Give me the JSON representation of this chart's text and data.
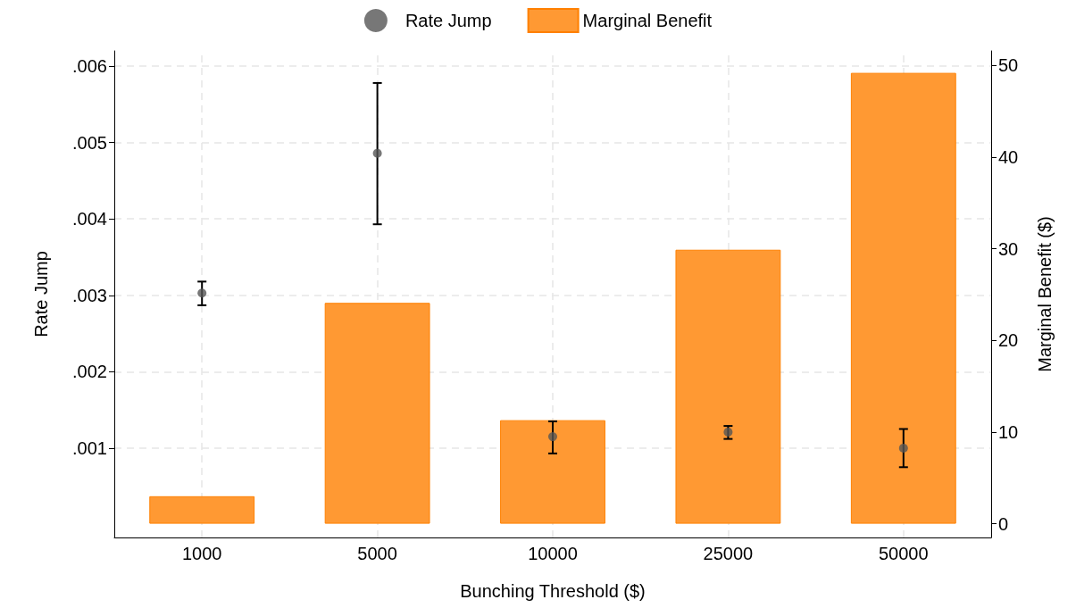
{
  "chart_data": {
    "type": "bar",
    "xlabel": "Bunching Threshold ($)",
    "ylabel": "Rate Jump",
    "y2label": "Marginal Benefit ($)",
    "categories": [
      "1000",
      "5000",
      "10000",
      "25000",
      "50000"
    ],
    "series": [
      {
        "name": "Rate Jump",
        "type": "scatter",
        "color": "#555555",
        "values": [
          0.00303,
          0.00486,
          0.00115,
          0.00121,
          0.001
        ],
        "errors": [
          [
            0.00287,
            0.00318
          ],
          [
            0.00393,
            0.00578
          ],
          [
            0.00093,
            0.00135
          ],
          [
            0.00112,
            0.00129
          ],
          [
            0.00075,
            0.00125
          ]
        ]
      },
      {
        "name": "Marginal Benefit",
        "axis": "y2",
        "color": "#ff9933",
        "values": [
          3.0,
          24.1,
          11.3,
          29.9,
          49.2
        ]
      }
    ],
    "ylim": [
      -0.00017,
      0.0062
    ],
    "yticks": [
      {
        "value": 0.001,
        "label": ".001"
      },
      {
        "value": 0.002,
        "label": ".002"
      },
      {
        "value": 0.003,
        "label": ".003"
      },
      {
        "value": 0.004,
        "label": ".004"
      },
      {
        "value": 0.005,
        "label": ".005"
      },
      {
        "value": 0.006,
        "label": ".006"
      }
    ],
    "y2lim": [
      -1.5,
      51.6
    ],
    "y2ticks": [
      0,
      10,
      20,
      30,
      40,
      50
    ],
    "grid": true,
    "legend": "top",
    "marker": "circle"
  }
}
